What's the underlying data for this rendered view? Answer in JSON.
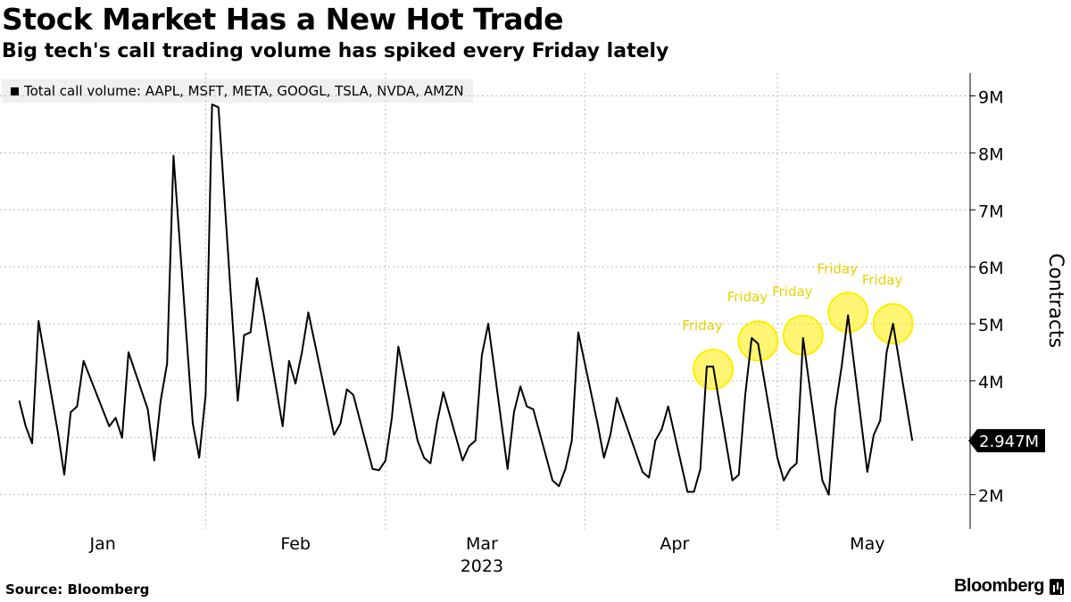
{
  "header": {
    "title": "Stock Market Has a New Hot Trade",
    "subtitle": "Big tech's call trading volume has spiked every Friday lately"
  },
  "legend": {
    "label": "Total call volume: AAPL, MSFT, META, GOOGL, TSLA, NVDA, AMZN"
  },
  "footer": {
    "source": "Source: Bloomberg",
    "brand": "Bloomberg",
    "brand_icon": "bloomberg-terminal-icon"
  },
  "colors": {
    "line": "#000000",
    "highlight": "#ffee00",
    "highlight_label": "#e8d200",
    "grid": "#bbbbbb"
  },
  "chart_data": {
    "type": "line",
    "title": "Stock Market Has a New Hot Trade",
    "subtitle": "Big tech's call trading volume has spiked every Friday lately",
    "ylabel": "Contracts",
    "xlabel": "2023",
    "ylim": [
      1.4,
      9.4
    ],
    "yticks": [
      2,
      3,
      4,
      5,
      6,
      7,
      8,
      9
    ],
    "ytick_labels": [
      "2M",
      "",
      "4M",
      "5M",
      "6M",
      "7M",
      "8M",
      "9M"
    ],
    "xticks": [
      {
        "label": "Jan",
        "date": "2023-01-16"
      },
      {
        "label": "Feb",
        "date": "2023-02-15"
      },
      {
        "label": "Mar",
        "date": "2023-03-16"
      },
      {
        "label": "Apr",
        "date": "2023-04-15"
      },
      {
        "label": "May",
        "date": "2023-05-15"
      }
    ],
    "xgrid": [
      "2023-02-01",
      "2023-03-01",
      "2023-04-01",
      "2023-05-01"
    ],
    "year_label": "2023",
    "grid": true,
    "legend_position": "top-left",
    "series": [
      {
        "name": "Total call volume: AAPL, MSFT, META, GOOGL, TSLA, NVDA, AMZN",
        "x": [
          "2023-01-03",
          "2023-01-04",
          "2023-01-05",
          "2023-01-06",
          "2023-01-09",
          "2023-01-10",
          "2023-01-11",
          "2023-01-12",
          "2023-01-13",
          "2023-01-17",
          "2023-01-18",
          "2023-01-19",
          "2023-01-20",
          "2023-01-23",
          "2023-01-24",
          "2023-01-25",
          "2023-01-26",
          "2023-01-27",
          "2023-01-30",
          "2023-01-31",
          "2023-02-01",
          "2023-02-02",
          "2023-02-03",
          "2023-02-06",
          "2023-02-07",
          "2023-02-08",
          "2023-02-09",
          "2023-02-10",
          "2023-02-13",
          "2023-02-14",
          "2023-02-15",
          "2023-02-16",
          "2023-02-17",
          "2023-02-21",
          "2023-02-22",
          "2023-02-23",
          "2023-02-24",
          "2023-02-27",
          "2023-02-28",
          "2023-03-01",
          "2023-03-02",
          "2023-03-03",
          "2023-03-06",
          "2023-03-07",
          "2023-03-08",
          "2023-03-09",
          "2023-03-10",
          "2023-03-13",
          "2023-03-14",
          "2023-03-15",
          "2023-03-16",
          "2023-03-17",
          "2023-03-20",
          "2023-03-21",
          "2023-03-22",
          "2023-03-23",
          "2023-03-24",
          "2023-03-27",
          "2023-03-28",
          "2023-03-29",
          "2023-03-30",
          "2023-03-31",
          "2023-04-03",
          "2023-04-04",
          "2023-04-05",
          "2023-04-06",
          "2023-04-10",
          "2023-04-11",
          "2023-04-12",
          "2023-04-13",
          "2023-04-14",
          "2023-04-17",
          "2023-04-18",
          "2023-04-19",
          "2023-04-20",
          "2023-04-21",
          "2023-04-24",
          "2023-04-25",
          "2023-04-26",
          "2023-04-27",
          "2023-04-28",
          "2023-05-01",
          "2023-05-02",
          "2023-05-03",
          "2023-05-04",
          "2023-05-05",
          "2023-05-08",
          "2023-05-09",
          "2023-05-10",
          "2023-05-11",
          "2023-05-12",
          "2023-05-15",
          "2023-05-16",
          "2023-05-17",
          "2023-05-18",
          "2023-05-19",
          "2023-05-22"
        ],
        "values": [
          3.65,
          3.2,
          2.9,
          5.05,
          3.1,
          2.35,
          3.45,
          3.55,
          4.35,
          3.2,
          3.35,
          3.0,
          4.5,
          3.5,
          2.6,
          3.65,
          4.3,
          7.95,
          3.25,
          2.65,
          3.75,
          8.85,
          8.8,
          3.65,
          4.8,
          4.85,
          5.8,
          5.2,
          3.2,
          4.35,
          3.95,
          4.5,
          5.2,
          3.05,
          3.25,
          3.85,
          3.75,
          2.45,
          2.43,
          2.6,
          3.35,
          4.6,
          2.95,
          2.65,
          2.55,
          3.25,
          3.8,
          2.6,
          2.85,
          2.95,
          4.45,
          5.0,
          2.45,
          3.45,
          3.9,
          3.55,
          3.5,
          2.25,
          2.15,
          2.45,
          2.95,
          4.85,
          3.25,
          2.65,
          3.05,
          3.7,
          2.4,
          2.3,
          2.95,
          3.15,
          3.55,
          2.05,
          2.05,
          2.45,
          4.25,
          4.25,
          2.25,
          2.35,
          3.75,
          4.75,
          4.65,
          2.65,
          2.25,
          2.45,
          2.55,
          4.75,
          2.25,
          2.0,
          3.5,
          4.25,
          5.15,
          2.4,
          3.05,
          3.3,
          4.5,
          5.0,
          2.947
        ]
      }
    ],
    "last_value_label": "2.947M",
    "annotations": [
      {
        "label": "Friday",
        "x": "2023-04-21",
        "y": 4.2
      },
      {
        "label": "Friday",
        "x": "2023-04-28",
        "y": 4.7
      },
      {
        "label": "Friday",
        "x": "2023-05-05",
        "y": 4.8
      },
      {
        "label": "Friday",
        "x": "2023-05-12",
        "y": 5.2
      },
      {
        "label": "Friday",
        "x": "2023-05-19",
        "y": 5.0
      }
    ]
  }
}
